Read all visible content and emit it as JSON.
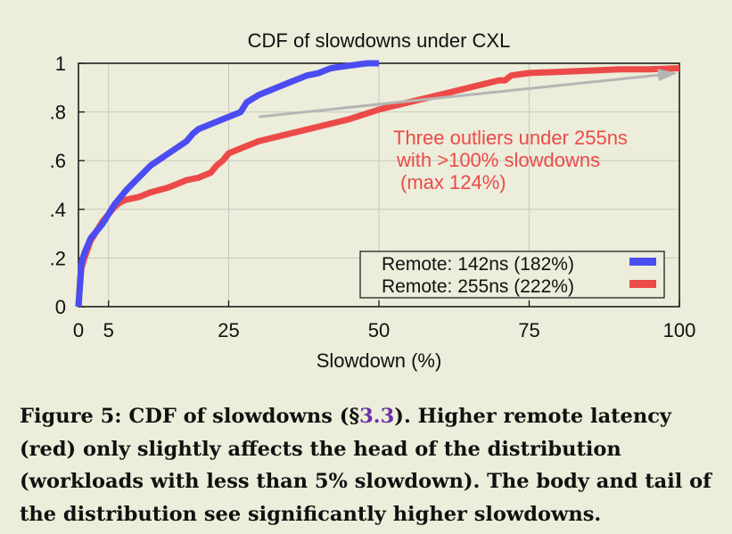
{
  "chart_data": {
    "type": "line",
    "title": "CDF of slowdowns under CXL",
    "xlabel": "Slowdown (%)",
    "ylabel": "",
    "xlim": [
      0,
      100
    ],
    "ylim": [
      0,
      1
    ],
    "x_ticks": [
      0,
      5,
      25,
      50,
      75,
      100
    ],
    "x_tick_labels": [
      "0",
      "5",
      "25",
      "50",
      "75",
      "100"
    ],
    "y_ticks": [
      0,
      0.2,
      0.4,
      0.6,
      0.8,
      1
    ],
    "y_tick_labels": [
      "0",
      ".2",
      ".4",
      ".6",
      ".8",
      "1"
    ],
    "grid": true,
    "legend_position": "bottom-right",
    "series": [
      {
        "name": "Remote: 142ns (182%)",
        "color": "#4b4cf2",
        "x": [
          0,
          0.3,
          0.5,
          1,
          1.5,
          2,
          3,
          4,
          5,
          6,
          7,
          8,
          10,
          12,
          15,
          18,
          19,
          20,
          22,
          25,
          27,
          28,
          30,
          32,
          35,
          38,
          40,
          42,
          45,
          48,
          50
        ],
        "y": [
          0,
          0.1,
          0.18,
          0.22,
          0.25,
          0.28,
          0.31,
          0.34,
          0.38,
          0.42,
          0.45,
          0.48,
          0.53,
          0.58,
          0.63,
          0.68,
          0.71,
          0.73,
          0.75,
          0.78,
          0.8,
          0.84,
          0.87,
          0.89,
          0.92,
          0.95,
          0.96,
          0.98,
          0.99,
          1.0,
          1.0
        ]
      },
      {
        "name": "Remote: 255ns (222%)",
        "color": "#ec4a48",
        "x": [
          0,
          0.3,
          0.5,
          1,
          2,
          3,
          4,
          5,
          6,
          7,
          8,
          10,
          12,
          15,
          18,
          20,
          22,
          23,
          24,
          25,
          28,
          30,
          35,
          40,
          45,
          50,
          55,
          60,
          65,
          70,
          71,
          72,
          75,
          80,
          85,
          90,
          95,
          100
        ],
        "y": [
          0,
          0.12,
          0.16,
          0.2,
          0.27,
          0.31,
          0.35,
          0.38,
          0.41,
          0.43,
          0.44,
          0.45,
          0.47,
          0.49,
          0.52,
          0.53,
          0.55,
          0.58,
          0.6,
          0.63,
          0.66,
          0.68,
          0.71,
          0.74,
          0.77,
          0.81,
          0.84,
          0.87,
          0.9,
          0.93,
          0.93,
          0.95,
          0.96,
          0.965,
          0.97,
          0.975,
          0.975,
          0.98
        ]
      }
    ],
    "annotation": {
      "lines": [
        "Three outliers under 255ns",
        "with >100% slowdowns",
        "(max 124%)"
      ],
      "color": "#ec4a48",
      "arrow_from": [
        30,
        0.78
      ],
      "arrow_to": [
        100,
        0.96
      ]
    }
  },
  "caption": {
    "prefix": "Figure 5:  CDF of slowdowns (§",
    "ref": "3.3",
    "rest": ").  Higher remote latency (red) only slightly affects the head of the distribution (workloads with less than 5% slowdown). The body and tail of the distribution see significantly higher slowdowns."
  }
}
